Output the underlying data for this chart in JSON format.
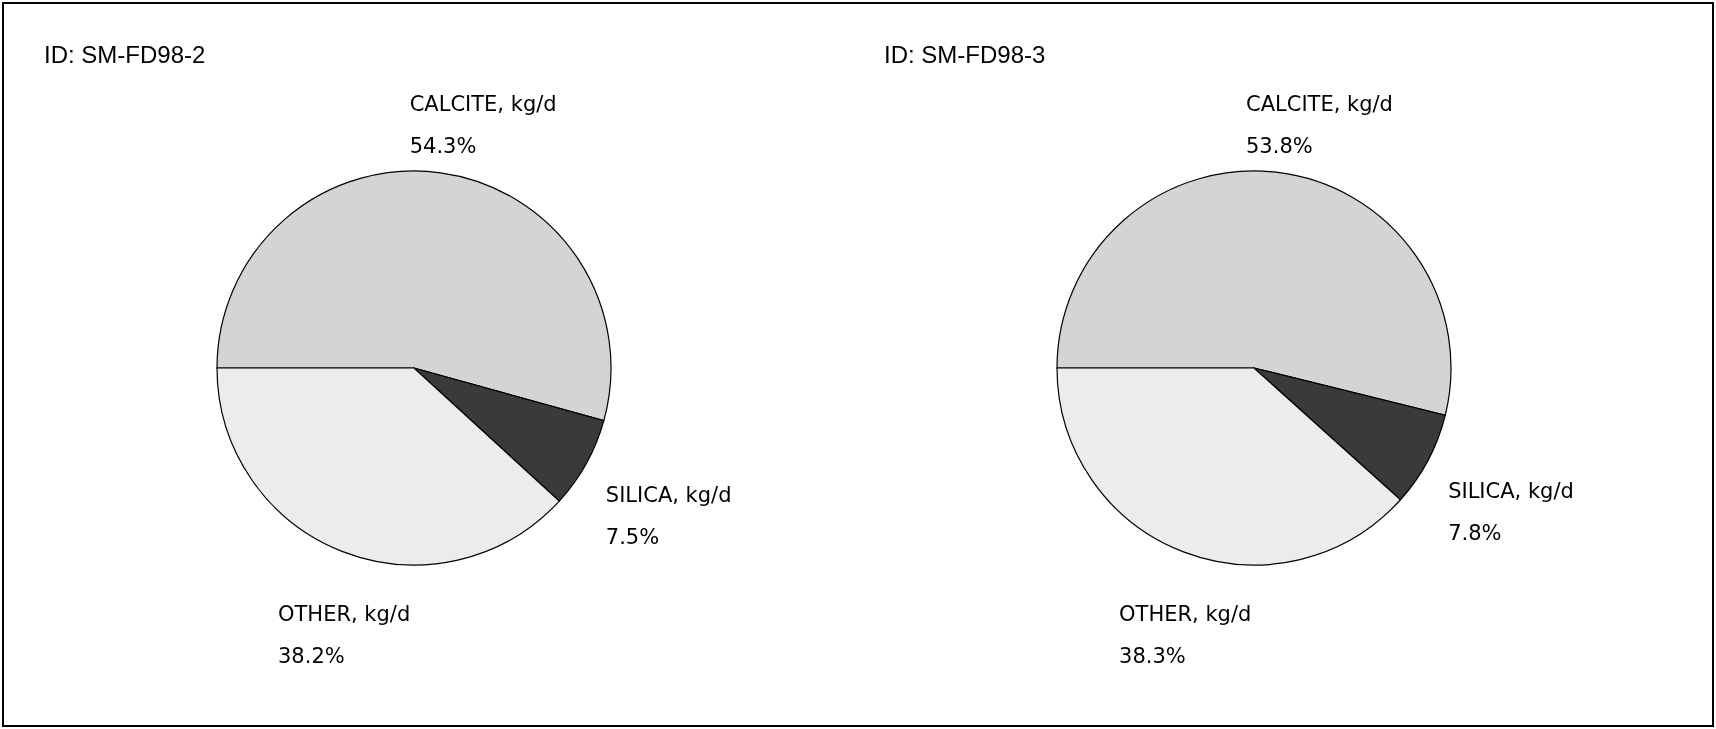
{
  "chart_data": [
    {
      "type": "pie",
      "title": "ID:  SM-FD98-2",
      "categories": [
        "CALCITE, kg/d",
        "SILICA, kg/d",
        "OTHER, kg/d"
      ],
      "values": [
        54.3,
        7.5,
        38.2
      ],
      "value_labels": [
        "54.3%",
        "7.5%",
        "38.2%"
      ],
      "colors": [
        "#d4d4d4",
        "#3a3a3a",
        "#ececec"
      ],
      "legend": false
    },
    {
      "type": "pie",
      "title": "ID:  SM-FD98-3",
      "categories": [
        "CALCITE, kg/d",
        "SILICA, kg/d",
        "OTHER, kg/d"
      ],
      "values": [
        53.8,
        7.8,
        38.3
      ],
      "value_labels": [
        "53.8%",
        "7.8%",
        "38.3%"
      ],
      "colors": [
        "#d4d4d4",
        "#3a3a3a",
        "#ececec"
      ],
      "legend": false
    }
  ]
}
